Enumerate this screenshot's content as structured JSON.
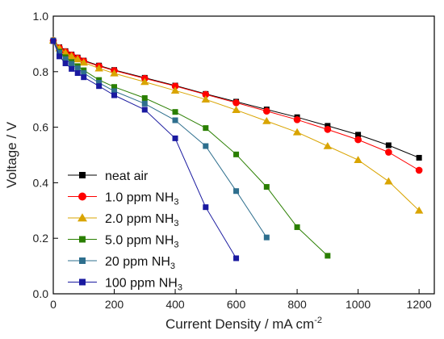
{
  "chart_data": {
    "type": "line",
    "title": "",
    "xlabel": "Current Density / mA cm",
    "xlabel_sup": "-2",
    "ylabel": "Voltage / V",
    "xlim": [
      0,
      1250
    ],
    "ylim": [
      0.0,
      1.0
    ],
    "xticks": [
      0,
      200,
      400,
      600,
      800,
      1000,
      1200
    ],
    "yticks": [
      0.0,
      0.2,
      0.4,
      0.6,
      0.8,
      1.0
    ],
    "grid": false,
    "legend_position": "bottom-left",
    "series": [
      {
        "name": "neat air",
        "name_sub": "",
        "color": "#000000",
        "marker": "square",
        "x": [
          0,
          20,
          40,
          60,
          80,
          100,
          150,
          200,
          300,
          400,
          500,
          600,
          700,
          800,
          900,
          1000,
          1100,
          1200
        ],
        "y": [
          0.912,
          0.888,
          0.874,
          0.862,
          0.851,
          0.84,
          0.822,
          0.806,
          0.778,
          0.75,
          0.72,
          0.692,
          0.664,
          0.636,
          0.605,
          0.573,
          0.535,
          0.49
        ]
      },
      {
        "name": "1.0 ppm NH",
        "name_sub": "3",
        "color": "#ff0000",
        "marker": "circle",
        "x": [
          0,
          20,
          40,
          60,
          80,
          100,
          150,
          200,
          300,
          400,
          500,
          600,
          700,
          800,
          900,
          1000,
          1100,
          1200
        ],
        "y": [
          0.912,
          0.886,
          0.872,
          0.86,
          0.849,
          0.838,
          0.82,
          0.804,
          0.776,
          0.748,
          0.718,
          0.688,
          0.658,
          0.627,
          0.592,
          0.555,
          0.51,
          0.445
        ]
      },
      {
        "name": "2.0 ppm NH",
        "name_sub": "3",
        "color": "#d9a400",
        "marker": "triangle",
        "x": [
          0,
          20,
          40,
          60,
          80,
          100,
          150,
          200,
          300,
          400,
          500,
          600,
          700,
          800,
          900,
          1000,
          1100,
          1200
        ],
        "y": [
          0.912,
          0.884,
          0.868,
          0.856,
          0.845,
          0.833,
          0.812,
          0.794,
          0.763,
          0.732,
          0.7,
          0.662,
          0.622,
          0.582,
          0.532,
          0.482,
          0.405,
          0.3
        ]
      },
      {
        "name": "5.0 ppm NH",
        "name_sub": "3",
        "color": "#2a7f00",
        "marker": "square",
        "x": [
          0,
          20,
          40,
          60,
          80,
          100,
          150,
          200,
          300,
          400,
          500,
          600,
          700,
          800,
          900
        ],
        "y": [
          0.912,
          0.872,
          0.852,
          0.835,
          0.82,
          0.805,
          0.77,
          0.745,
          0.705,
          0.655,
          0.597,
          0.502,
          0.385,
          0.24,
          0.137
        ]
      },
      {
        "name": "20 ppm NH",
        "name_sub": "3",
        "color": "#2e6f8e",
        "marker": "square",
        "x": [
          0,
          20,
          40,
          60,
          80,
          100,
          150,
          200,
          300,
          400,
          500,
          600,
          700
        ],
        "y": [
          0.912,
          0.868,
          0.845,
          0.828,
          0.812,
          0.795,
          0.76,
          0.73,
          0.685,
          0.625,
          0.532,
          0.37,
          0.203
        ]
      },
      {
        "name": "100 ppm NH",
        "name_sub": "3",
        "color": "#1a1aa0",
        "marker": "square",
        "x": [
          0,
          20,
          40,
          60,
          80,
          100,
          150,
          200,
          300,
          400,
          500,
          600
        ],
        "y": [
          0.91,
          0.855,
          0.83,
          0.81,
          0.795,
          0.78,
          0.748,
          0.715,
          0.663,
          0.56,
          0.312,
          0.128
        ]
      }
    ]
  }
}
